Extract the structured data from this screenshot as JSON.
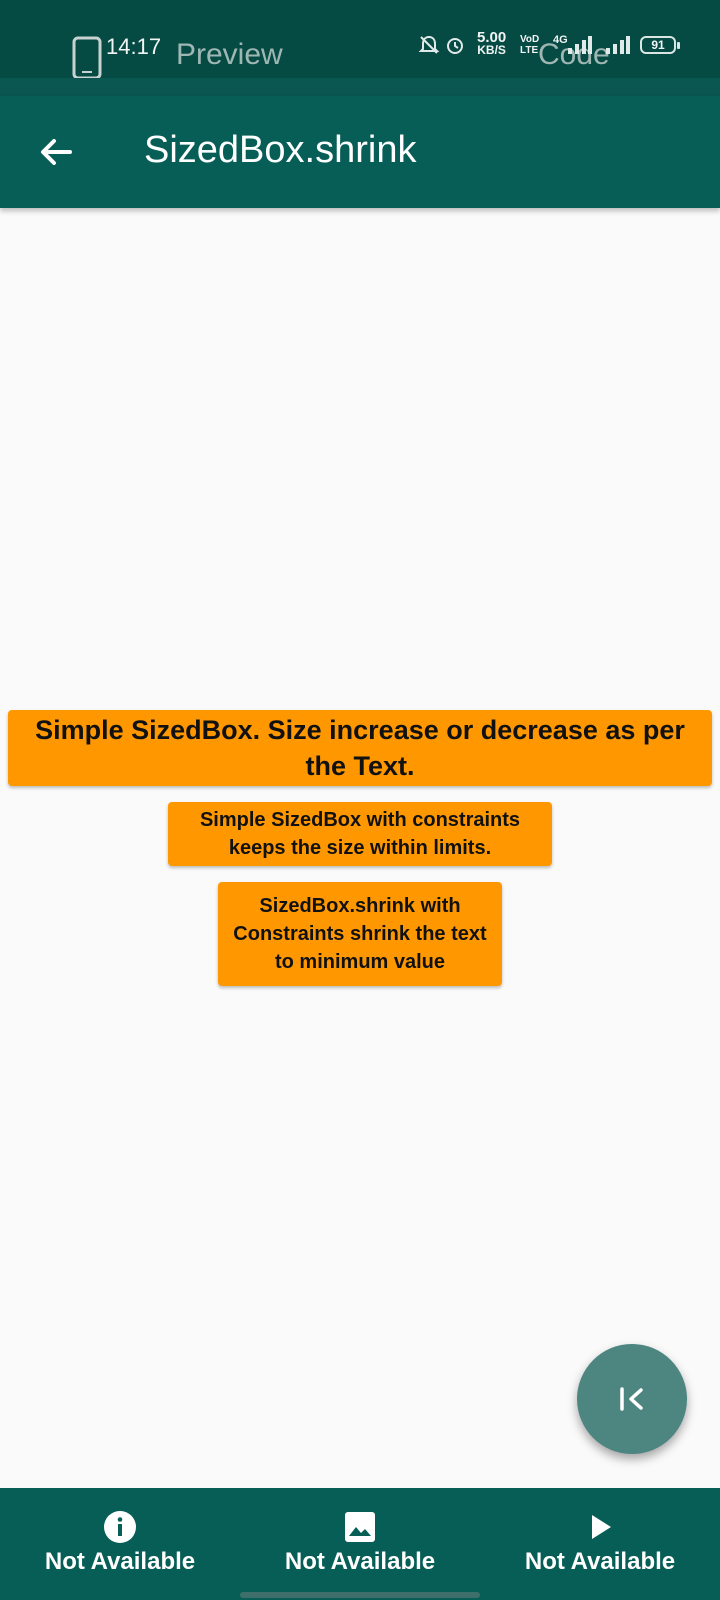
{
  "status_bar": {
    "time": "14:17",
    "net_speed_value": "5.00",
    "net_speed_unit": "KB/S",
    "volte_top": "VoD",
    "volte_bottom": "LTE",
    "network_type": "4G",
    "battery": "91",
    "tab_preview": "Preview",
    "tab_code": "Code"
  },
  "app_bar": {
    "title": "SizedBox.shrink",
    "back_icon": "arrow-back-icon"
  },
  "content": {
    "box1_text": "Simple SizedBox. Size increase or decrease as per the Text.",
    "box2_text": "Simple SizedBox with constraints keeps the size within limits.",
    "box3_text": "SizedBox.shrink with Constraints shrink the text to minimum value"
  },
  "fab": {
    "icon": "first-page-icon"
  },
  "bottom_nav": {
    "items": [
      {
        "icon": "info-icon",
        "label": "Not Available"
      },
      {
        "icon": "image-icon",
        "label": "Not Available"
      },
      {
        "icon": "play-icon",
        "label": "Not Available"
      }
    ]
  },
  "colors": {
    "primary": "#075e57",
    "status_bar": "#064a44",
    "box": "#ff9800",
    "fab": "#4d8680",
    "background": "#fafafa"
  }
}
